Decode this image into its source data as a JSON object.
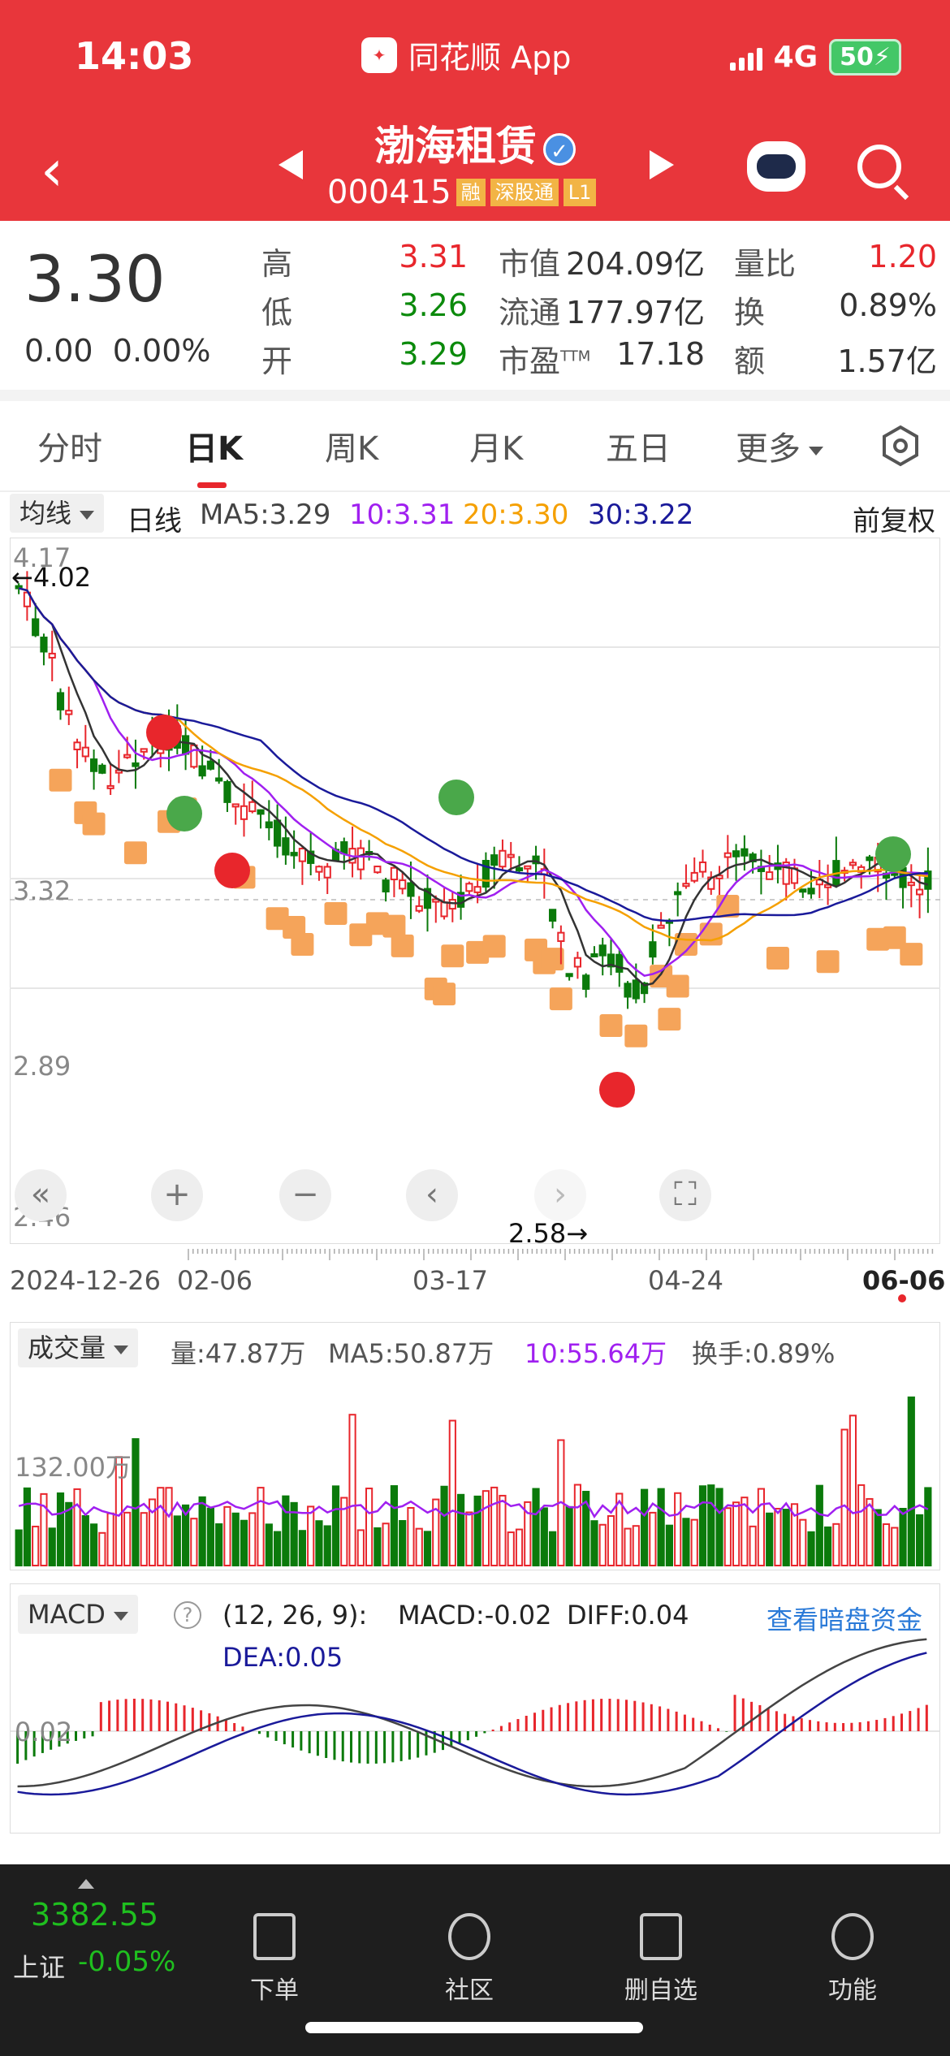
{
  "status": {
    "time": "14:03",
    "app_name": "同花顺 App",
    "network": "4G",
    "battery": "50"
  },
  "header": {
    "title": "渤海租赁",
    "code": "000415",
    "tags": [
      "融",
      "深股通",
      "L1"
    ]
  },
  "quote": {
    "price": "3.30",
    "change": "0.00",
    "change_pct": "0.00%",
    "high_label": "高",
    "high": "3.31",
    "low_label": "低",
    "low": "3.26",
    "open_label": "开",
    "open": "3.29",
    "mktcap_label": "市值",
    "mktcap": "204.09亿",
    "float_label": "流通",
    "float": "177.97亿",
    "pe_label": "市盈",
    "pe_sup": "TTM",
    "pe": "17.18",
    "volratio_label": "量比",
    "volratio": "1.20",
    "turnover_label": "换",
    "turnover": "0.89%",
    "amount_label": "额",
    "amount": "1.57亿"
  },
  "tabs": [
    "分时",
    "日K",
    "周K",
    "月K",
    "五日",
    "更多"
  ],
  "kline": {
    "indicator": "均线",
    "period": "日线",
    "ma5": "MA5:3.29",
    "ma10": "10:3.31",
    "ma20": "20:3.30",
    "ma30": "30:3.22",
    "adjust": "前复权",
    "y_labels": [
      "4.17",
      "3.32",
      "2.89",
      "2.46"
    ],
    "max_marker": "←4.02",
    "min_marker": "2.58→",
    "dates": [
      "2024-12-26",
      "02-06",
      "03-17",
      "04-24",
      "06-06"
    ],
    "colors": {
      "up": "#e8262c",
      "down": "#0b7a0b",
      "ma5": "#333333",
      "ma10": "#a020f0",
      "ma20": "#f5a000",
      "ma30": "#1a1a9a",
      "t_tag": "#f5a45a"
    }
  },
  "volume": {
    "indicator": "成交量",
    "vol": "量:47.87万",
    "ma5": "MA5:50.87万",
    "ma10": "10:55.64万",
    "turnover": "换手:0.89%",
    "y_label": "132.00万"
  },
  "macd": {
    "indicator": "MACD",
    "params": "(12, 26, 9):",
    "macd": "MACD:-0.02",
    "diff": "DIFF:0.04",
    "dea": "DEA:0.05",
    "link": "查看暗盘资金",
    "y_label": "0.02"
  },
  "bottom": {
    "index_value": "3382.55",
    "index_name": "上证",
    "index_change": "-0.05%",
    "items": [
      "下单",
      "社区",
      "删自选",
      "功能"
    ]
  }
}
